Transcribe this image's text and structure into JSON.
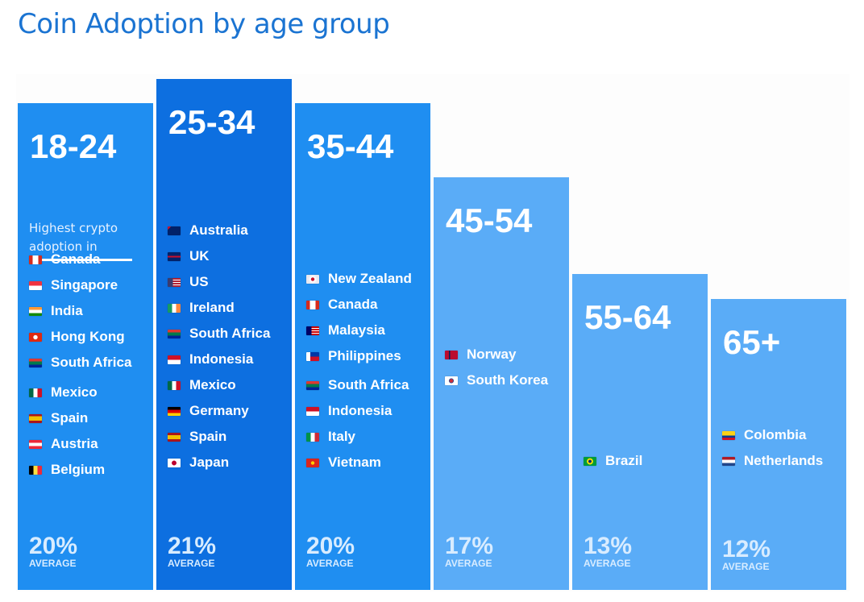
{
  "title": "Coin Adoption by age group",
  "intro_text_line1": "Highest crypto",
  "intro_text_line2": "adoption in",
  "average_label": "AVERAGE",
  "colors": {
    "title": "#1b74d2",
    "primary_bar": "#1f8ef1",
    "highlight_bar": "#0d6fe0",
    "light_bar": "#5aacf7"
  },
  "chart_data": {
    "type": "bar",
    "title": "Coin Adoption by age group",
    "xlabel": "",
    "ylabel": "",
    "categories": [
      "18-24",
      "25-34",
      "35-44",
      "45-54",
      "55-64",
      "65+"
    ],
    "values": [
      20,
      21,
      20,
      17,
      13,
      12
    ],
    "value_format": "percent",
    "value_label": "AVERAGE",
    "ylim": [
      0,
      21
    ],
    "grid": false,
    "legend": "none",
    "groups": [
      {
        "age": "18-24",
        "average": "20%",
        "color": "#1f8ef1",
        "countries": [
          {
            "name": "Canada",
            "flag": "flag-canada-icon"
          },
          {
            "name": "Singapore",
            "flag": "flag-singapore-icon"
          },
          {
            "name": "India",
            "flag": "flag-india-icon"
          },
          {
            "name": "Hong Kong",
            "flag": "flag-hong-kong-icon"
          },
          {
            "name": "South Africa",
            "flag": "flag-south-africa-icon"
          },
          {
            "name": "Mexico",
            "flag": "flag-mexico-icon"
          },
          {
            "name": "Spain",
            "flag": "flag-spain-icon"
          },
          {
            "name": "Austria",
            "flag": "flag-austria-icon"
          },
          {
            "name": "Belgium",
            "flag": "flag-belgium-icon"
          }
        ]
      },
      {
        "age": "25-34",
        "average": "21%",
        "color": "#0d6fe0",
        "countries": [
          {
            "name": "Australia",
            "flag": "flag-australia-icon"
          },
          {
            "name": "UK",
            "flag": "flag-uk-icon"
          },
          {
            "name": "US",
            "flag": "flag-us-icon"
          },
          {
            "name": "Ireland",
            "flag": "flag-ireland-icon"
          },
          {
            "name": "South Africa",
            "flag": "flag-south-africa-icon"
          },
          {
            "name": "Indonesia",
            "flag": "flag-indonesia-icon"
          },
          {
            "name": "Mexico",
            "flag": "flag-mexico-icon"
          },
          {
            "name": "Germany",
            "flag": "flag-germany-icon"
          },
          {
            "name": "Spain",
            "flag": "flag-spain-icon"
          },
          {
            "name": "Japan",
            "flag": "flag-japan-icon"
          }
        ]
      },
      {
        "age": "35-44",
        "average": "20%",
        "color": "#1f8ef1",
        "countries": [
          {
            "name": "New Zealand",
            "flag": "flag-new-zealand-icon"
          },
          {
            "name": "Canada",
            "flag": "flag-canada-icon"
          },
          {
            "name": "Malaysia",
            "flag": "flag-malaysia-icon"
          },
          {
            "name": "Philippines",
            "flag": "flag-philippines-icon"
          },
          {
            "name": "South Africa",
            "flag": "flag-south-africa-icon"
          },
          {
            "name": "Indonesia",
            "flag": "flag-indonesia-icon"
          },
          {
            "name": "Italy",
            "flag": "flag-italy-icon"
          },
          {
            "name": "Vietnam",
            "flag": "flag-vietnam-icon"
          }
        ]
      },
      {
        "age": "45-54",
        "average": "17%",
        "color": "#5aacf7",
        "countries": [
          {
            "name": "Norway",
            "flag": "flag-norway-icon"
          },
          {
            "name": "South Korea",
            "flag": "flag-south-korea-icon"
          }
        ]
      },
      {
        "age": "55-64",
        "average": "13%",
        "color": "#5aacf7",
        "countries": [
          {
            "name": "Brazil",
            "flag": "flag-brazil-icon"
          }
        ]
      },
      {
        "age": "65+",
        "average": "12%",
        "color": "#5aacf7",
        "countries": [
          {
            "name": "Colombia",
            "flag": "flag-colombia-icon"
          },
          {
            "name": "Netherlands",
            "flag": "flag-netherlands-icon"
          }
        ]
      }
    ]
  }
}
